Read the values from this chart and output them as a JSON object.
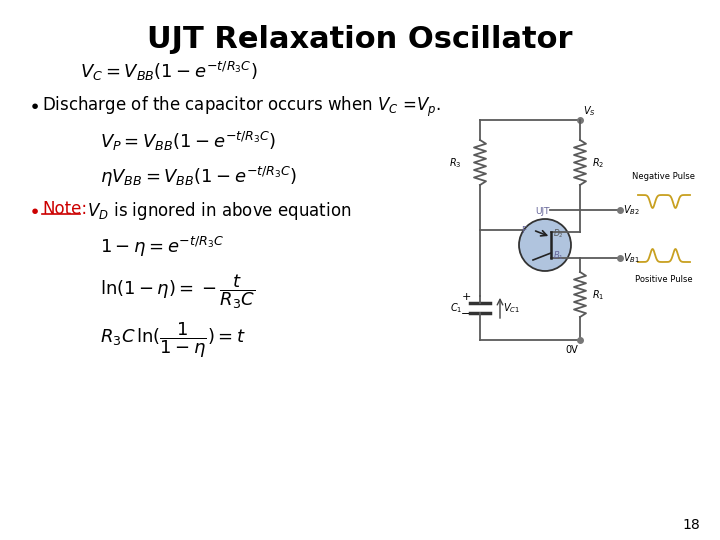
{
  "title": "UJT Relaxation Oscillator",
  "title_fontsize": 22,
  "title_fontweight": "bold",
  "bg_color": "#ffffff",
  "text_color": "#000000",
  "eq1": "$V_C = V_{BB}(1 - e^{-t/R_3C})$",
  "bullet1": "Discharge of the capacitor occurs when $V_C$ =$V_p$.",
  "eq2": "$V_P = V_{BB}(1 - e^{-t/R_3C})$",
  "eq3": "$\\eta V_{BB} = V_{BB}(1 - e^{-t/R_3C})$",
  "bullet2_note": "Note:",
  "bullet2_rest": " $V_D$ is ignored in above equation",
  "eq4": "$1 - \\eta = e^{-t/R_3C}$",
  "eq5": "$\\ln(1 - \\eta) = -\\dfrac{t}{R_3C}$",
  "eq6": "$R_3C\\,\\ln(\\dfrac{1}{1-\\eta}) = t$",
  "page_num": "18",
  "note_color": "#cc0000",
  "circuit_line_color": "#5a5a5a",
  "ujt_fill": "#b0c4de",
  "waveform_color": "#c8a020"
}
